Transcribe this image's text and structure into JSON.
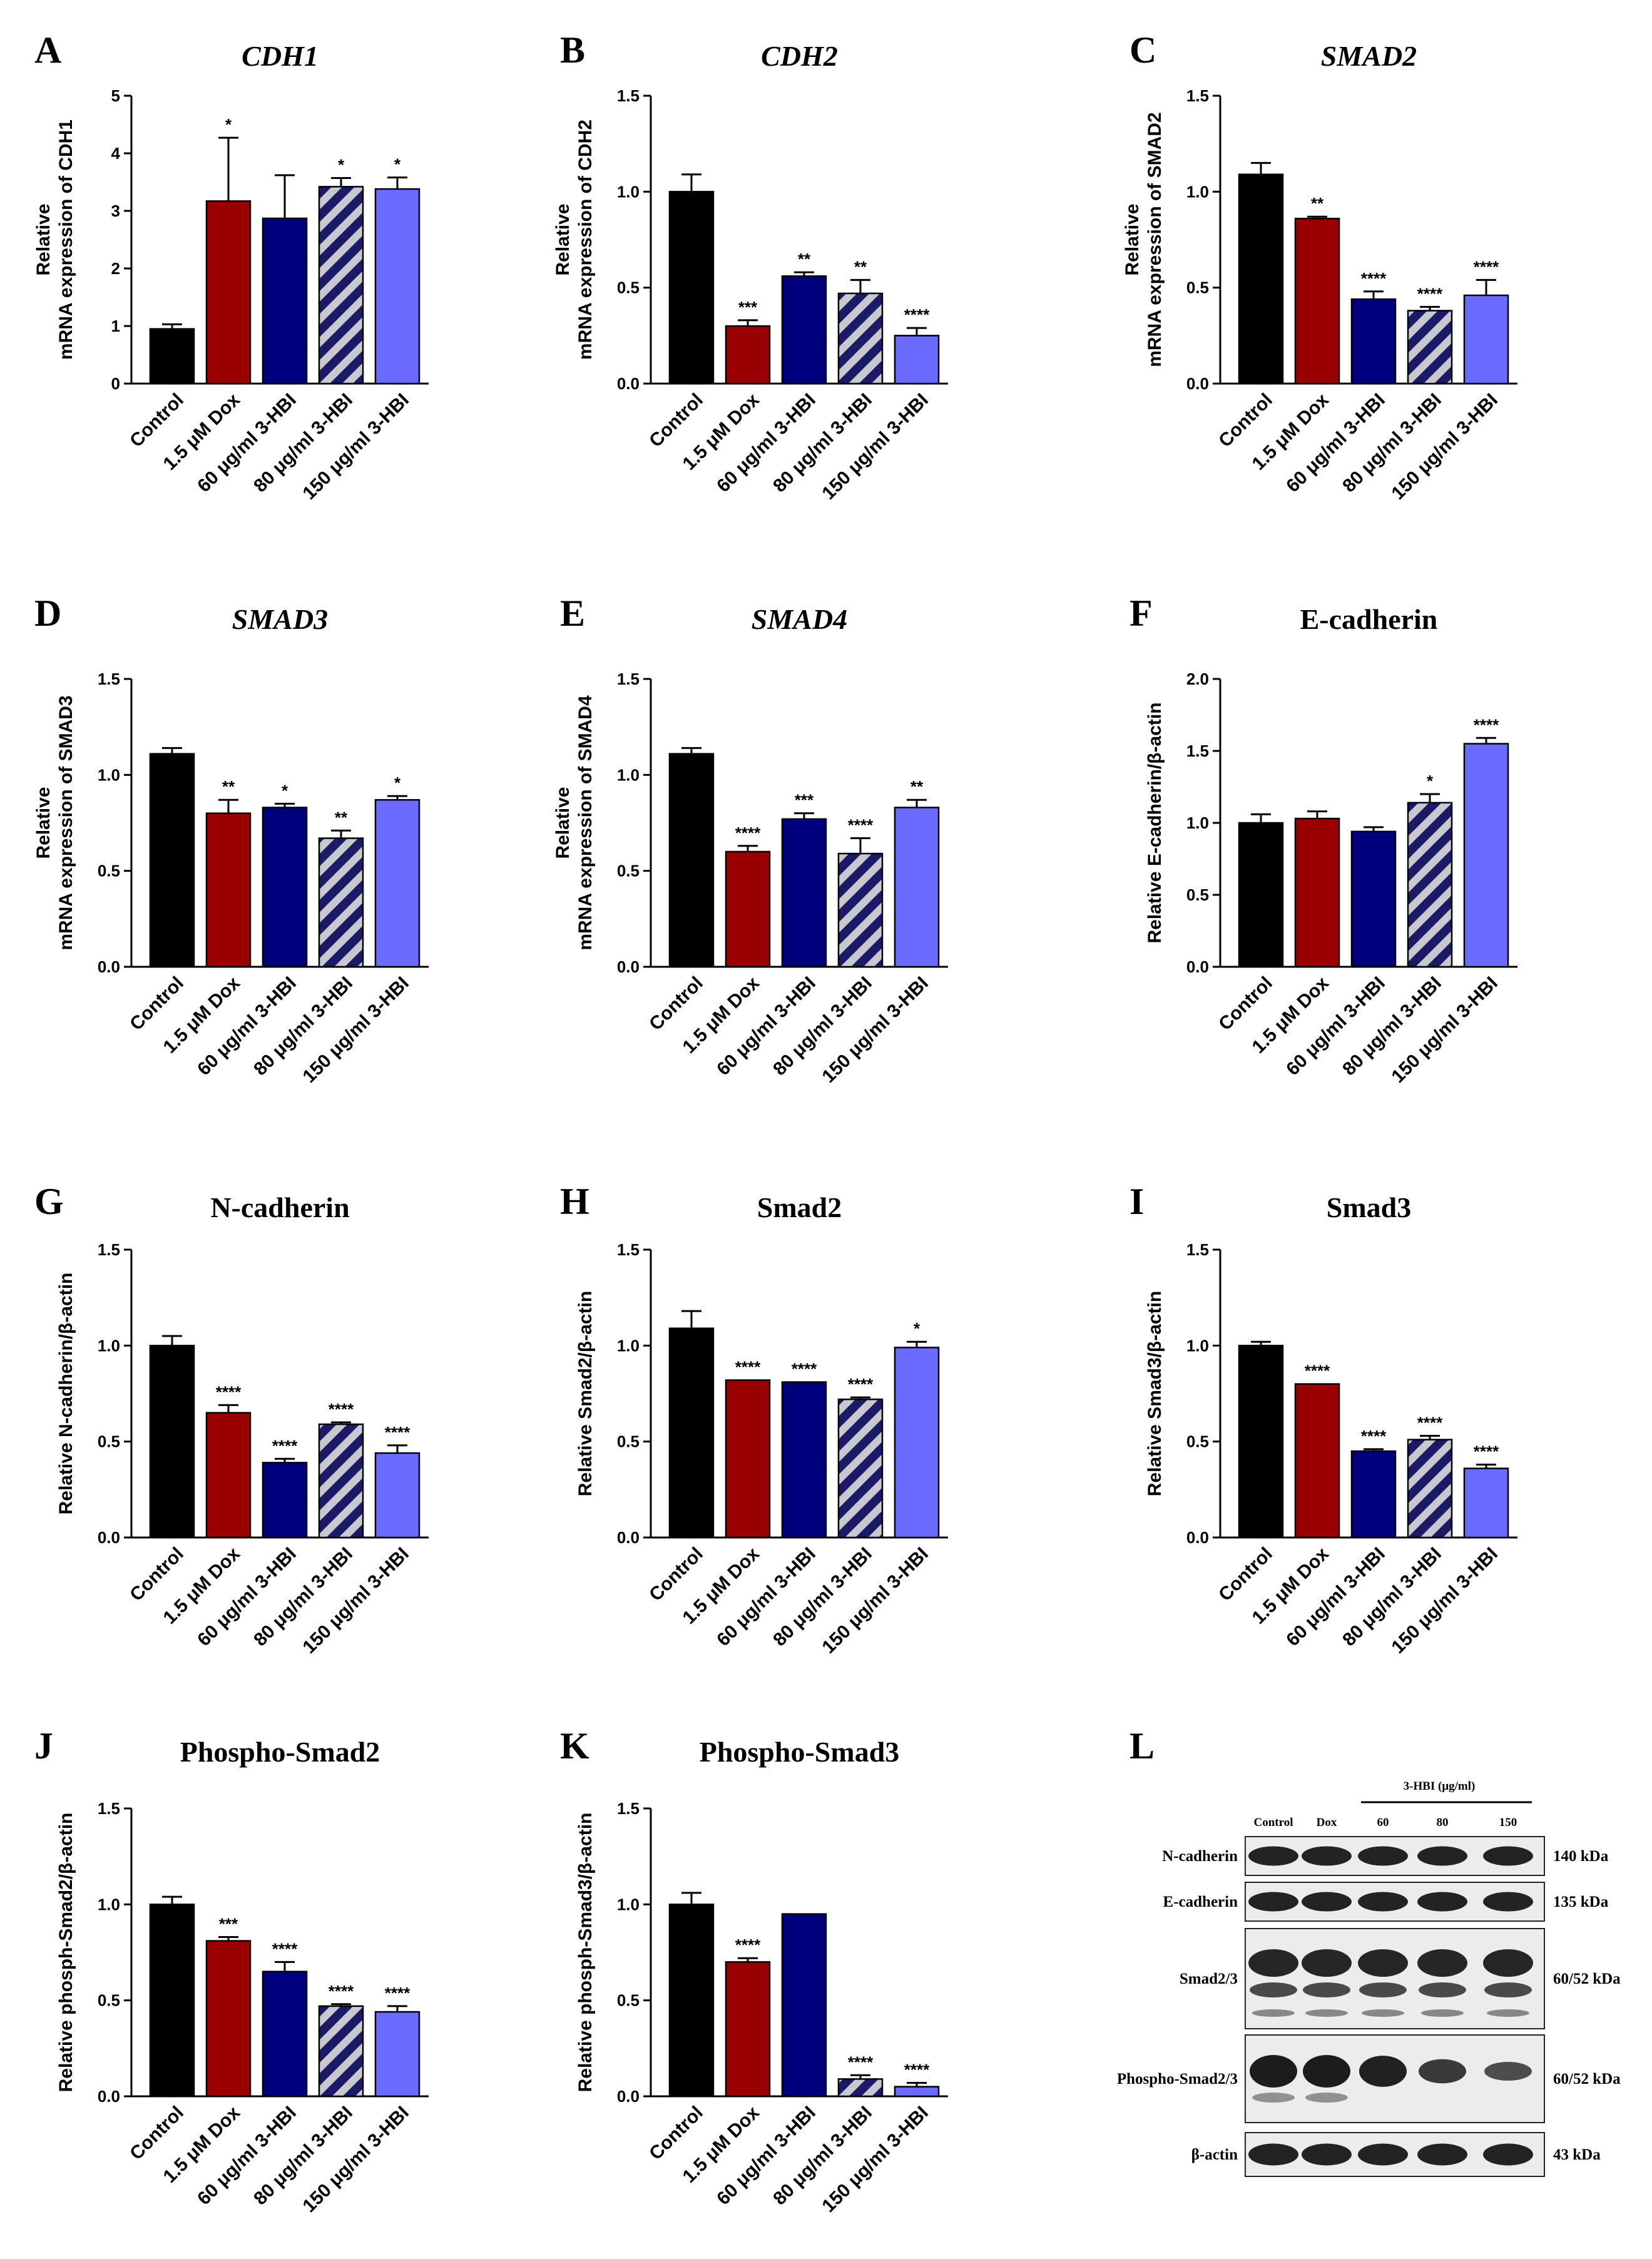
{
  "colors": {
    "control": "#000000",
    "dox": "#9b0000",
    "hbi60": "#00007f",
    "hbi80_fg": "#1a1a66",
    "hbi80_bg": "#c8c8d0",
    "hbi150": "#6b6bff"
  },
  "categories": [
    "Control",
    "1.5 μM Dox",
    "60 μg/ml 3-HBI",
    "80 μg/ml 3-HBI",
    "150 μg/ml 3-HBI"
  ],
  "chart_data": [
    {
      "letter": "A",
      "type": "bar",
      "title": "CDH1",
      "title_italic": true,
      "ylabel_lines": [
        "Relative",
        "mRNA expression of CDH1"
      ],
      "ylim": [
        0,
        5
      ],
      "yticks": [
        "0",
        "1",
        "2",
        "3",
        "4",
        "5"
      ],
      "values": [
        0.95,
        3.17,
        2.87,
        3.42,
        3.38
      ],
      "errors": [
        0.08,
        1.1,
        0.75,
        0.15,
        0.2
      ],
      "stars": [
        "",
        "*",
        "",
        "*",
        "*"
      ]
    },
    {
      "letter": "B",
      "type": "bar",
      "title": "CDH2",
      "title_italic": true,
      "ylabel_lines": [
        "Relative",
        "mRNA expression of CDH2"
      ],
      "ylim": [
        0,
        1.5
      ],
      "yticks": [
        "0.0",
        "0.5",
        "1.0",
        "1.5"
      ],
      "values": [
        1.0,
        0.3,
        0.56,
        0.47,
        0.25
      ],
      "errors": [
        0.09,
        0.03,
        0.02,
        0.07,
        0.04
      ],
      "stars": [
        "",
        "***",
        "**",
        "**",
        "****"
      ]
    },
    {
      "letter": "C",
      "type": "bar",
      "title": "SMAD2",
      "title_italic": true,
      "ylabel_lines": [
        "Relative",
        "mRNA expression of SMAD2"
      ],
      "ylim": [
        0,
        1.5
      ],
      "yticks": [
        "0.0",
        "0.5",
        "1.0",
        "1.5"
      ],
      "values": [
        1.09,
        0.86,
        0.44,
        0.38,
        0.46
      ],
      "errors": [
        0.06,
        0.01,
        0.04,
        0.02,
        0.08
      ],
      "stars": [
        "",
        "**",
        "****",
        "****",
        "****"
      ]
    },
    {
      "letter": "D",
      "type": "bar",
      "title": "SMAD3",
      "title_italic": true,
      "ylabel_lines": [
        "Relative",
        "mRNA expression of SMAD3"
      ],
      "ylim": [
        0,
        1.5
      ],
      "yticks": [
        "0.0",
        "0.5",
        "1.0",
        "1.5"
      ],
      "values": [
        1.11,
        0.8,
        0.83,
        0.67,
        0.87
      ],
      "errors": [
        0.03,
        0.07,
        0.02,
        0.04,
        0.02
      ],
      "stars": [
        "",
        "**",
        "*",
        "**",
        "*"
      ]
    },
    {
      "letter": "E",
      "type": "bar",
      "title": "SMAD4",
      "title_italic": true,
      "ylabel_lines": [
        "Relative",
        "mRNA expression of SMAD4"
      ],
      "ylim": [
        0,
        1.5
      ],
      "yticks": [
        "0.0",
        "0.5",
        "1.0",
        "1.5"
      ],
      "values": [
        1.11,
        0.6,
        0.77,
        0.59,
        0.83
      ],
      "errors": [
        0.03,
        0.03,
        0.03,
        0.08,
        0.04
      ],
      "stars": [
        "",
        "****",
        "***",
        "****",
        "**"
      ]
    },
    {
      "letter": "F",
      "type": "bar",
      "title": "E-cadherin",
      "title_italic": false,
      "ylabel_lines": [
        "Relative E-cadherin/β-actin"
      ],
      "ylim": [
        0,
        2.0
      ],
      "yticks": [
        "0.0",
        "0.5",
        "1.0",
        "1.5",
        "2.0"
      ],
      "values": [
        1.0,
        1.03,
        0.94,
        1.14,
        1.55
      ],
      "errors": [
        0.06,
        0.05,
        0.03,
        0.06,
        0.04
      ],
      "stars": [
        "",
        "",
        "",
        "*",
        "****"
      ]
    },
    {
      "letter": "G",
      "type": "bar",
      "title": "N-cadherin",
      "title_italic": false,
      "ylabel_lines": [
        "Relative N-cadherin/β-actin"
      ],
      "ylim": [
        0,
        1.5
      ],
      "yticks": [
        "0.0",
        "0.5",
        "1.0",
        "1.5"
      ],
      "values": [
        1.0,
        0.65,
        0.39,
        0.59,
        0.44
      ],
      "errors": [
        0.05,
        0.04,
        0.02,
        0.01,
        0.04
      ],
      "stars": [
        "",
        "****",
        "****",
        "****",
        "****"
      ]
    },
    {
      "letter": "H",
      "type": "bar",
      "title": "Smad2",
      "title_italic": false,
      "ylabel_lines": [
        "Relative Smad2/β-actin"
      ],
      "ylim": [
        0,
        1.5
      ],
      "yticks": [
        "0.0",
        "0.5",
        "1.0",
        "1.5"
      ],
      "values": [
        1.09,
        0.82,
        0.81,
        0.72,
        0.99
      ],
      "errors": [
        0.09,
        0.0,
        0.0,
        0.01,
        0.03
      ],
      "stars": [
        "",
        "****",
        "****",
        "****",
        "*"
      ]
    },
    {
      "letter": "I",
      "type": "bar",
      "title": "Smad3",
      "title_italic": false,
      "ylabel_lines": [
        "Relative Smad3/β-actin"
      ],
      "ylim": [
        0,
        1.5
      ],
      "yticks": [
        "0.0",
        "0.5",
        "1.0",
        "1.5"
      ],
      "values": [
        1.0,
        0.8,
        0.45,
        0.51,
        0.36
      ],
      "errors": [
        0.02,
        0.0,
        0.01,
        0.02,
        0.02
      ],
      "stars": [
        "",
        "****",
        "****",
        "****",
        "****"
      ]
    },
    {
      "letter": "J",
      "type": "bar",
      "title": "Phospho-Smad2",
      "title_italic": false,
      "ylabel_lines": [
        "Relative phosph-Smad2/β-actin"
      ],
      "ylim": [
        0,
        1.5
      ],
      "yticks": [
        "0.0",
        "0.5",
        "1.0",
        "1.5"
      ],
      "values": [
        1.0,
        0.81,
        0.65,
        0.47,
        0.44
      ],
      "errors": [
        0.04,
        0.02,
        0.05,
        0.01,
        0.03
      ],
      "stars": [
        "",
        "***",
        "****",
        "****",
        "****"
      ]
    },
    {
      "letter": "K",
      "type": "bar",
      "title": "Phospho-Smad3",
      "title_italic": false,
      "ylabel_lines": [
        "Relative phosph-Smad3/β-actin"
      ],
      "ylim": [
        0,
        1.5
      ],
      "yticks": [
        "0.0",
        "0.5",
        "1.0",
        "1.5"
      ],
      "values": [
        1.0,
        0.7,
        0.95,
        0.09,
        0.05
      ],
      "errors": [
        0.06,
        0.02,
        0.0,
        0.02,
        0.02
      ],
      "stars": [
        "",
        "****",
        "",
        "****",
        "****"
      ]
    }
  ],
  "blot": {
    "letter": "L",
    "group_label": "3-HBI (μg/ml)",
    "lanes": [
      "Control",
      "Dox",
      "60",
      "80",
      "150"
    ],
    "rows": [
      {
        "name": "N-cadherin",
        "kda": "140 kDa"
      },
      {
        "name": "E-cadherin",
        "kda": "135 kDa"
      },
      {
        "name": "Smad2/3",
        "kda": "60/52 kDa"
      },
      {
        "name": "Phospho-Smad2/3",
        "kda": "60/52 kDa"
      },
      {
        "name": "β-actin",
        "kda": "43 kDa"
      }
    ]
  }
}
